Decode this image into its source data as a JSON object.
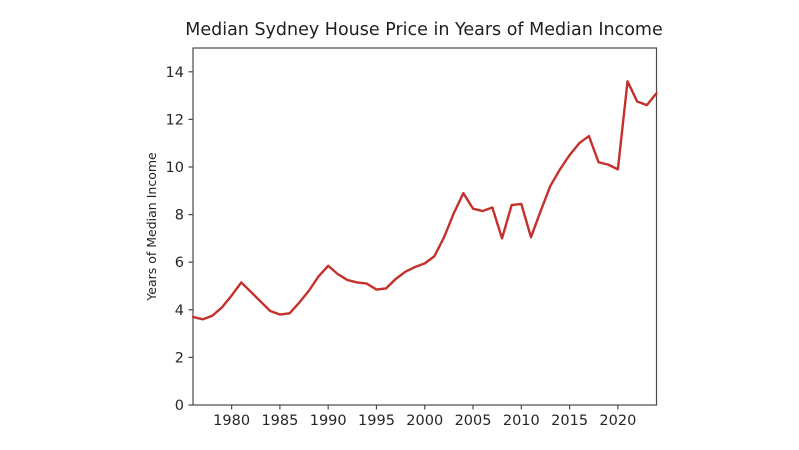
{
  "chart_data": {
    "type": "line",
    "title": "Median Sydney House Price in Years of Median Income",
    "xlabel": "",
    "ylabel": "Years of Median Income",
    "x": [
      1976,
      1977,
      1978,
      1979,
      1980,
      1981,
      1982,
      1983,
      1984,
      1985,
      1986,
      1987,
      1988,
      1989,
      1990,
      1991,
      1992,
      1993,
      1994,
      1995,
      1996,
      1997,
      1998,
      1999,
      2000,
      2001,
      2002,
      2003,
      2004,
      2005,
      2006,
      2007,
      2008,
      2009,
      2010,
      2011,
      2012,
      2013,
      2014,
      2015,
      2016,
      2017,
      2018,
      2019,
      2020,
      2021,
      2022,
      2023,
      2024
    ],
    "values": [
      3.7,
      3.6,
      3.75,
      4.1,
      4.6,
      5.15,
      4.75,
      4.35,
      3.95,
      3.8,
      3.85,
      4.3,
      4.8,
      5.4,
      5.85,
      5.5,
      5.25,
      5.15,
      5.1,
      4.85,
      4.9,
      5.3,
      5.6,
      5.8,
      5.95,
      6.25,
      7.05,
      8.05,
      8.9,
      8.25,
      8.15,
      8.3,
      7.0,
      8.4,
      8.45,
      7.05,
      8.15,
      9.2,
      9.9,
      10.5,
      11.0,
      11.3,
      10.2,
      10.1,
      9.9,
      13.6,
      12.75,
      12.6,
      13.1
    ],
    "xlim": [
      1976,
      2024
    ],
    "ylim": [
      0,
      15
    ],
    "xticks": [
      1980,
      1985,
      1990,
      1995,
      2000,
      2005,
      2010,
      2015,
      2020
    ],
    "yticks": [
      0,
      2,
      4,
      6,
      8,
      10,
      12,
      14
    ],
    "grid": false,
    "legend": "none",
    "line_color": "#c4302b",
    "axis_color": "#4a4a4a",
    "text_color": "#1f1f1f"
  }
}
